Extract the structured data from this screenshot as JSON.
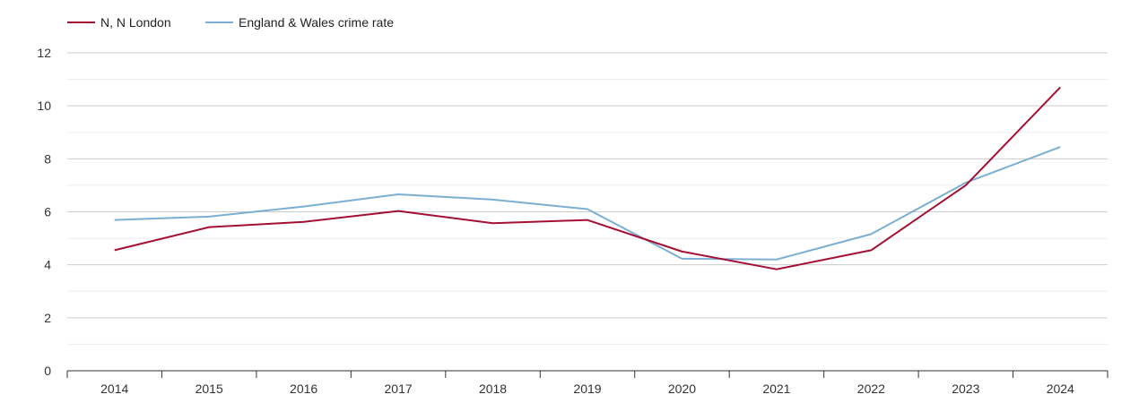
{
  "chart_data": {
    "type": "line",
    "title": "",
    "xlabel": "",
    "ylabel": "",
    "categories": [
      "2014",
      "2015",
      "2016",
      "2017",
      "2018",
      "2019",
      "2020",
      "2021",
      "2022",
      "2023",
      "2024"
    ],
    "ylim": [
      0,
      12
    ],
    "yticks": [
      0,
      2,
      4,
      6,
      8,
      10,
      12
    ],
    "grid": true,
    "legend_position": "top-left",
    "series": [
      {
        "name": "N, N London",
        "color": "#a50f32",
        "values": [
          4.55,
          5.42,
          5.62,
          6.03,
          5.57,
          5.69,
          4.5,
          3.83,
          4.55,
          7.0,
          10.7
        ]
      },
      {
        "name": "England & Wales crime rate",
        "color": "#7bafd4",
        "values": [
          5.69,
          5.82,
          6.2,
          6.66,
          6.46,
          6.1,
          4.23,
          4.2,
          5.16,
          7.1,
          8.45
        ]
      }
    ]
  }
}
